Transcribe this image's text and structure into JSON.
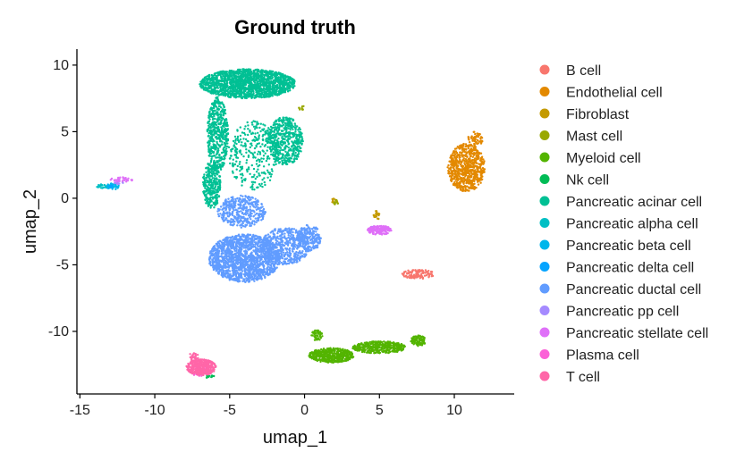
{
  "chart_data": {
    "type": "scatter",
    "title": "Ground truth",
    "xlabel": "umap_1",
    "ylabel": "umap_2",
    "xlim": [
      -15.2,
      14
    ],
    "ylim": [
      -14.7,
      11.2
    ],
    "xticks": [
      -15,
      -10,
      -5,
      0,
      5,
      10
    ],
    "yticks": [
      -10,
      -5,
      0,
      5,
      10
    ],
    "xtick_labels": [
      "-15",
      "-10",
      "-5",
      "0",
      "5",
      "10"
    ],
    "ytick_labels": [
      "-10",
      "-5",
      "0",
      "5",
      "10"
    ],
    "grid": false,
    "legend_position": "right",
    "series": [
      {
        "name": "B cell",
        "color": "#F8766D",
        "clusters": [
          {
            "cx": 7.6,
            "cy": -5.7,
            "rx": 1.1,
            "ry": 0.35,
            "n": 110
          }
        ]
      },
      {
        "name": "Endothelial cell",
        "color": "#E38900",
        "clusters": [
          {
            "cx": 10.8,
            "cy": 2.3,
            "rx": 1.25,
            "ry": 1.8,
            "n": 700
          },
          {
            "cx": 11.4,
            "cy": 4.4,
            "rx": 0.5,
            "ry": 0.6,
            "n": 60
          }
        ]
      },
      {
        "name": "Fibroblast",
        "color": "#C49A00",
        "clusters": [
          {
            "cx": 4.8,
            "cy": -1.3,
            "rx": 0.2,
            "ry": 0.4,
            "n": 20
          },
          {
            "cx": 2.0,
            "cy": -0.2,
            "rx": 0.2,
            "ry": 0.2,
            "n": 10
          }
        ]
      },
      {
        "name": "Mast cell",
        "color": "#99A800",
        "clusters": [
          {
            "cx": 2.1,
            "cy": -0.3,
            "rx": 0.15,
            "ry": 0.2,
            "n": 12
          },
          {
            "cx": -0.2,
            "cy": 6.8,
            "rx": 0.2,
            "ry": 0.2,
            "n": 10
          }
        ]
      },
      {
        "name": "Myeloid cell",
        "color": "#53B400",
        "clusters": [
          {
            "cx": 1.8,
            "cy": -11.8,
            "rx": 1.5,
            "ry": 0.55,
            "n": 450
          },
          {
            "cx": 5.0,
            "cy": -11.2,
            "rx": 1.8,
            "ry": 0.45,
            "n": 400
          },
          {
            "cx": 7.6,
            "cy": -10.7,
            "rx": 0.5,
            "ry": 0.4,
            "n": 90
          },
          {
            "cx": 0.8,
            "cy": -10.3,
            "rx": 0.4,
            "ry": 0.4,
            "n": 50
          }
        ]
      },
      {
        "name": "Nk cell",
        "color": "#00BC56",
        "clusters": [
          {
            "cx": -6.3,
            "cy": -13.4,
            "rx": 0.3,
            "ry": 0.15,
            "n": 14
          }
        ]
      },
      {
        "name": "Pancreatic acinar cell",
        "color": "#00C094",
        "clusters": [
          {
            "cx": -3.8,
            "cy": 8.6,
            "rx": 3.2,
            "ry": 1.1,
            "n": 1600
          },
          {
            "cx": -1.3,
            "cy": 4.3,
            "rx": 1.2,
            "ry": 1.8,
            "n": 500
          },
          {
            "cx": -5.8,
            "cy": 4.8,
            "rx": 0.7,
            "ry": 2.8,
            "n": 500
          },
          {
            "cx": -6.2,
            "cy": 1.0,
            "rx": 0.6,
            "ry": 1.8,
            "n": 300
          },
          {
            "cx": -3.4,
            "cy": 3.2,
            "rx": 1.7,
            "ry": 2.6,
            "n": 300
          }
        ]
      },
      {
        "name": "Pancreatic alpha cell",
        "color": "#00BFC4",
        "clusters": [
          {
            "cx": -13.4,
            "cy": 0.9,
            "rx": 0.5,
            "ry": 0.15,
            "n": 30
          }
        ]
      },
      {
        "name": "Pancreatic beta cell",
        "color": "#00B6EB",
        "clusters": [
          {
            "cx": -12.8,
            "cy": 0.9,
            "rx": 0.4,
            "ry": 0.25,
            "n": 40
          }
        ]
      },
      {
        "name": "Pancreatic delta cell",
        "color": "#06A4FF",
        "clusters": [
          {
            "cx": -13.0,
            "cy": 0.9,
            "rx": 0.2,
            "ry": 0.15,
            "n": 10
          }
        ]
      },
      {
        "name": "Pancreatic ductal cell",
        "color": "#619CFF",
        "clusters": [
          {
            "cx": -4.0,
            "cy": -4.5,
            "rx": 2.4,
            "ry": 1.8,
            "n": 1600
          },
          {
            "cx": -1.3,
            "cy": -3.6,
            "rx": 1.6,
            "ry": 1.4,
            "n": 500
          },
          {
            "cx": -4.2,
            "cy": -1.0,
            "rx": 1.6,
            "ry": 1.2,
            "n": 400
          },
          {
            "cx": 0.3,
            "cy": -3.0,
            "rx": 0.8,
            "ry": 1.0,
            "n": 200
          }
        ]
      },
      {
        "name": "Pancreatic pp cell",
        "color": "#A58AFF",
        "clusters": [
          {
            "cx": -12.4,
            "cy": 1.2,
            "rx": 0.3,
            "ry": 0.2,
            "n": 12
          },
          {
            "cx": 4.5,
            "cy": -2.3,
            "rx": 0.2,
            "ry": 0.2,
            "n": 8
          }
        ]
      },
      {
        "name": "Pancreatic stellate cell",
        "color": "#DF70F8",
        "clusters": [
          {
            "cx": 5.0,
            "cy": -2.4,
            "rx": 0.8,
            "ry": 0.35,
            "n": 180
          },
          {
            "cx": -12.2,
            "cy": 1.4,
            "rx": 0.8,
            "ry": 0.2,
            "n": 30
          }
        ]
      },
      {
        "name": "Plasma cell",
        "color": "#FB61D7",
        "clusters": [
          {
            "cx": -7.0,
            "cy": -12.9,
            "rx": 0.6,
            "ry": 0.5,
            "n": 60
          }
        ]
      },
      {
        "name": "T cell",
        "color": "#FF66A8",
        "clusters": [
          {
            "cx": -6.9,
            "cy": -12.7,
            "rx": 1.0,
            "ry": 0.6,
            "n": 360
          },
          {
            "cx": -7.4,
            "cy": -11.9,
            "rx": 0.3,
            "ry": 0.4,
            "n": 30
          }
        ]
      }
    ]
  }
}
